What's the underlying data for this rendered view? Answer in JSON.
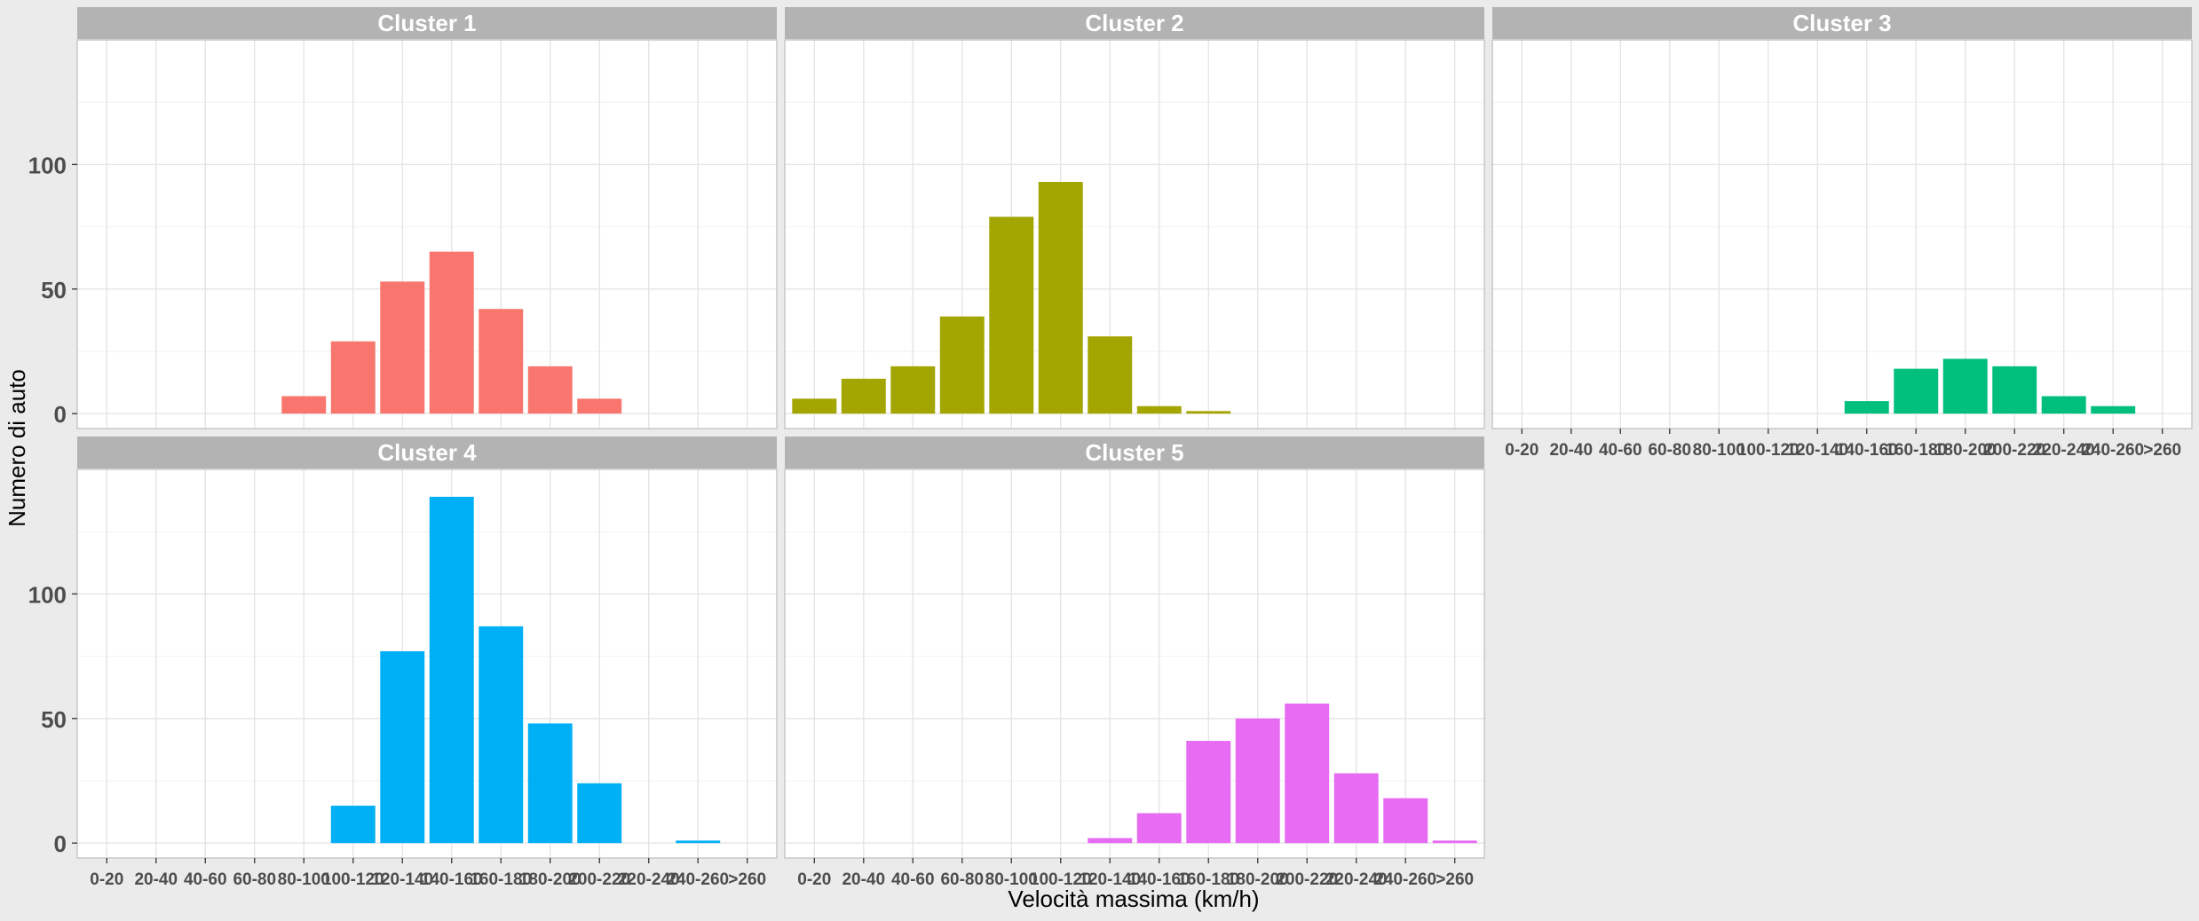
{
  "chart_data": {
    "type": "bar",
    "xlabel": "Velocità massima (km/h)",
    "ylabel": "Numero di auto",
    "categories": [
      "0-20",
      "20-40",
      "40-60",
      "60-80",
      "80-100",
      "100-120",
      "120-140",
      "140-160",
      "160-180",
      "180-200",
      "200-220",
      "220-240",
      "240-260",
      ">260"
    ],
    "ylim": [
      -6,
      150
    ],
    "yticks": [
      0,
      50,
      100
    ],
    "grid": true,
    "legend": "none",
    "panels": [
      {
        "title": "Cluster 1",
        "color": "#F8766D",
        "values": [
          0,
          0,
          0,
          0,
          7,
          29,
          53,
          65,
          42,
          19,
          6,
          0,
          0,
          0
        ]
      },
      {
        "title": "Cluster 2",
        "color": "#A3A500",
        "values": [
          6,
          14,
          19,
          39,
          79,
          93,
          31,
          3,
          1,
          0,
          0,
          0,
          0,
          0
        ]
      },
      {
        "title": "Cluster 3",
        "color": "#00BF7D",
        "values": [
          0,
          0,
          0,
          0,
          0,
          0,
          0,
          5,
          18,
          22,
          19,
          7,
          3,
          0
        ]
      },
      {
        "title": "Cluster 4",
        "color": "#00B0F6",
        "values": [
          0,
          0,
          0,
          0,
          0,
          15,
          77,
          139,
          87,
          48,
          24,
          0,
          1,
          0
        ]
      },
      {
        "title": "Cluster 5",
        "color": "#E76BF3",
        "values": [
          0,
          0,
          0,
          0,
          0,
          0,
          2,
          12,
          41,
          50,
          56,
          28,
          18,
          1
        ]
      }
    ]
  }
}
